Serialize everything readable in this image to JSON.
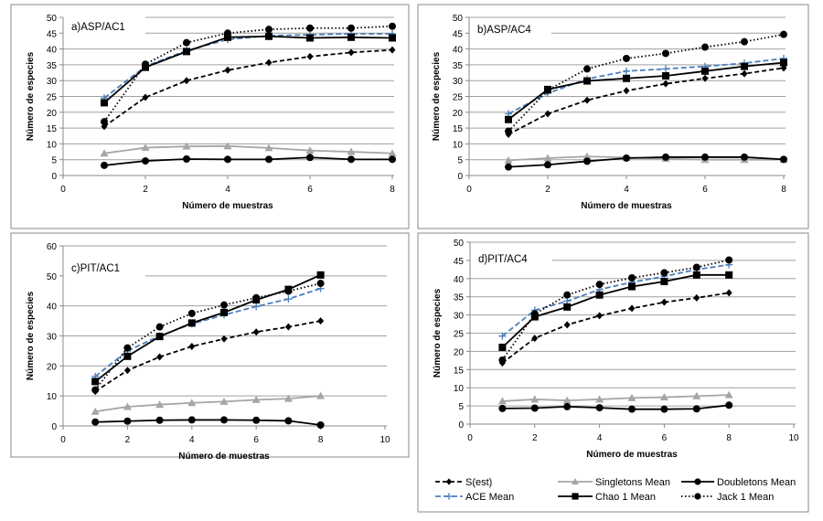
{
  "legend": {
    "placement": "bottom-right",
    "entries": [
      "S(est)",
      "Singletons Mean",
      "Doubletons Mean",
      "ACE Mean",
      "Chao 1 Mean",
      "Jack 1 Mean"
    ]
  },
  "colors": {
    "black": "#000000",
    "singletons": "#a6a6a6",
    "ace": "#4a7ebb",
    "grid": "#a0a0a0"
  },
  "chart_data": [
    {
      "type": "line",
      "title": "a)ASP/AC1",
      "xlabel": "Número de muestras",
      "ylabel": "Número de especies",
      "xlim": [
        0,
        8
      ],
      "xticks": [
        0,
        2,
        4,
        6,
        8
      ],
      "ylim": [
        0,
        50
      ],
      "yticks": [
        0,
        5,
        10,
        15,
        20,
        25,
        30,
        35,
        40,
        45,
        50
      ],
      "grid": true,
      "x": [
        1,
        2,
        3,
        4,
        5,
        6,
        7,
        8
      ],
      "series": [
        {
          "name": "S(est)",
          "values": [
            15.5,
            24.7,
            30,
            33.3,
            35.7,
            37.6,
            38.9,
            39.7
          ]
        },
        {
          "name": "Singletons Mean",
          "values": [
            7,
            8.8,
            9.2,
            9.3,
            8.7,
            7.9,
            7.5,
            7
          ]
        },
        {
          "name": "Doubletons Mean",
          "values": [
            3.2,
            4.6,
            5.2,
            5.1,
            5.1,
            5.7,
            5.1,
            5.1
          ]
        },
        {
          "name": "ACE Mean",
          "values": [
            24.5,
            34.5,
            39.5,
            43,
            44.2,
            44.5,
            44.8,
            44.8
          ]
        },
        {
          "name": "Chao 1 Mean",
          "values": [
            23,
            34.2,
            39.2,
            43.7,
            44,
            43.5,
            43.7,
            43.5
          ]
        },
        {
          "name": "Jack 1 Mean",
          "values": [
            17,
            35.2,
            42,
            45,
            46.2,
            46.6,
            46.6,
            47.2
          ]
        }
      ]
    },
    {
      "type": "line",
      "title": "b)ASP/AC4",
      "xlabel": "Número de muestras",
      "ylabel": "Número de especies",
      "xlim": [
        0,
        8
      ],
      "xticks": [
        0,
        2,
        4,
        6,
        8
      ],
      "ylim": [
        0,
        50
      ],
      "yticks": [
        0,
        5,
        10,
        15,
        20,
        25,
        30,
        35,
        40,
        45,
        50
      ],
      "grid": true,
      "x": [
        1,
        2,
        3,
        4,
        5,
        6,
        7,
        8
      ],
      "series": [
        {
          "name": "S(est)",
          "values": [
            13,
            19.5,
            23.8,
            26.8,
            29,
            30.7,
            32.2,
            34
          ]
        },
        {
          "name": "Singletons Mean",
          "values": [
            4.8,
            5.5,
            6,
            5.7,
            5.3,
            5,
            5,
            5
          ]
        },
        {
          "name": "Doubletons Mean",
          "values": [
            2.7,
            3.4,
            4.5,
            5.5,
            5.8,
            5.8,
            5.8,
            5.1
          ]
        },
        {
          "name": "ACE Mean",
          "values": [
            19.5,
            26,
            30.5,
            33,
            33.7,
            34.5,
            35.5,
            37
          ]
        },
        {
          "name": "Chao 1 Mean",
          "values": [
            17.7,
            27.2,
            29.9,
            30.7,
            31.5,
            33,
            34.5,
            35.7
          ]
        },
        {
          "name": "Jack 1 Mean",
          "values": [
            14,
            27,
            33.7,
            37,
            38.6,
            40.6,
            42.3,
            44.6
          ]
        }
      ]
    },
    {
      "type": "line",
      "title": "c)PIT/AC1",
      "xlabel": "Número de muestras",
      "ylabel": "Número de especies",
      "xlim": [
        0,
        10
      ],
      "xticks": [
        0,
        2,
        4,
        6,
        8,
        10
      ],
      "ylim": [
        0,
        60
      ],
      "yticks": [
        0,
        10,
        20,
        30,
        40,
        50,
        60
      ],
      "grid": true,
      "x": [
        1,
        2,
        3,
        4,
        5,
        6,
        7,
        8
      ],
      "series": [
        {
          "name": "S(est)",
          "values": [
            11.5,
            18.5,
            23,
            26.5,
            29,
            31.3,
            33,
            35
          ]
        },
        {
          "name": "Singletons Mean",
          "values": [
            4.8,
            6.4,
            7.1,
            7.7,
            8.1,
            8.7,
            9.1,
            10
          ]
        },
        {
          "name": "Doubletons Mean",
          "values": [
            1.3,
            1.6,
            1.9,
            2,
            2,
            1.9,
            1.7,
            0.3
          ]
        },
        {
          "name": "ACE Mean",
          "values": [
            16.5,
            25,
            30,
            34,
            37,
            39.8,
            42.3,
            45.8
          ]
        },
        {
          "name": "Chao 1 Mean",
          "values": [
            14.8,
            23.2,
            29.8,
            34.3,
            37.8,
            42,
            45.5,
            50.3
          ]
        },
        {
          "name": "Jack 1 Mean",
          "values": [
            12,
            26,
            33,
            37.5,
            40.3,
            42.7,
            44.9,
            47.5
          ]
        }
      ]
    },
    {
      "type": "line",
      "title": "d)PIT/AC4",
      "xlabel": "Número de muestras",
      "ylabel": "Número de especies",
      "xlim": [
        0,
        10
      ],
      "xticks": [
        0,
        2,
        4,
        6,
        8,
        10
      ],
      "ylim": [
        0,
        50
      ],
      "yticks": [
        0,
        5,
        10,
        15,
        20,
        25,
        30,
        35,
        40,
        45,
        50
      ],
      "grid": true,
      "x": [
        1,
        2,
        3,
        4,
        5,
        6,
        7,
        8
      ],
      "series": [
        {
          "name": "S(est)",
          "values": [
            16.8,
            23.6,
            27.3,
            29.8,
            31.8,
            33.5,
            34.7,
            36.1
          ]
        },
        {
          "name": "Singletons Mean",
          "values": [
            6.3,
            6.8,
            6.5,
            6.8,
            7.2,
            7.4,
            7.7,
            8
          ]
        },
        {
          "name": "Doubletons Mean",
          "values": [
            4.3,
            4.4,
            4.8,
            4.5,
            4.1,
            4.1,
            4.2,
            5.2
          ]
        },
        {
          "name": "ACE Mean",
          "values": [
            24.2,
            31.3,
            33.8,
            37,
            39,
            40.6,
            42.5,
            43.8
          ]
        },
        {
          "name": "Chao 1 Mean",
          "values": [
            21.1,
            29.5,
            32.2,
            35.5,
            37.8,
            39.2,
            41,
            41
          ]
        },
        {
          "name": "Jack 1 Mean",
          "values": [
            17.6,
            30.3,
            35.5,
            38.4,
            40.2,
            41.6,
            43.1,
            45.1
          ]
        }
      ]
    }
  ]
}
